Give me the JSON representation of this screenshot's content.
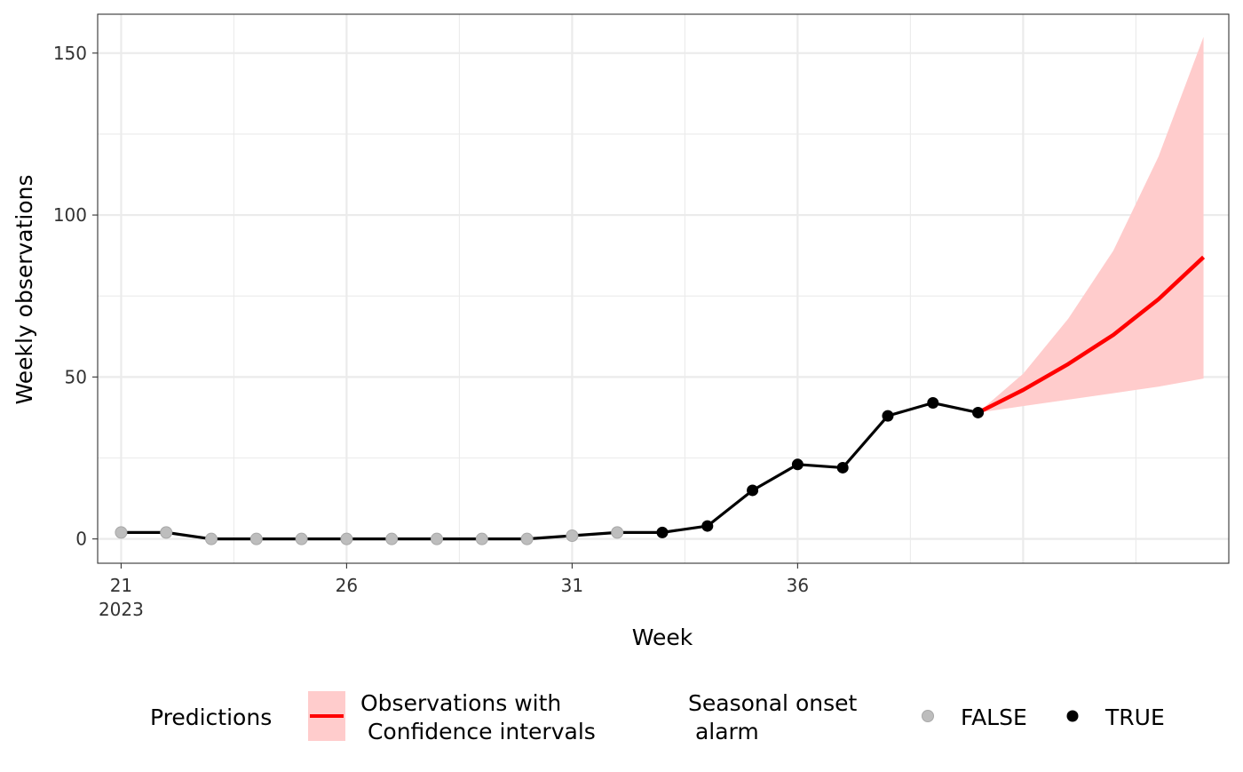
{
  "chart_data": {
    "type": "line",
    "xlabel": "Week",
    "ylabel": "Weekly observations",
    "x_ticks": [
      {
        "value": 21,
        "label": "21",
        "sublabel": "2023"
      },
      {
        "value": 26,
        "label": "26",
        "sublabel": ""
      },
      {
        "value": 31,
        "label": "31",
        "sublabel": ""
      },
      {
        "value": 36,
        "label": "36",
        "sublabel": ""
      }
    ],
    "y_ticks": [
      0,
      50,
      100,
      150
    ],
    "xlim": [
      20.48,
      45.56
    ],
    "ylim": [
      -7.5,
      162
    ],
    "observations": [
      {
        "week": 21,
        "value": 2,
        "alarm": false
      },
      {
        "week": 22,
        "value": 2,
        "alarm": false
      },
      {
        "week": 23,
        "value": 0,
        "alarm": false
      },
      {
        "week": 24,
        "value": 0,
        "alarm": false
      },
      {
        "week": 25,
        "value": 0,
        "alarm": false
      },
      {
        "week": 26,
        "value": 0,
        "alarm": false
      },
      {
        "week": 27,
        "value": 0,
        "alarm": false
      },
      {
        "week": 28,
        "value": 0,
        "alarm": false
      },
      {
        "week": 29,
        "value": 0,
        "alarm": false
      },
      {
        "week": 30,
        "value": 0,
        "alarm": false
      },
      {
        "week": 31,
        "value": 1,
        "alarm": false
      },
      {
        "week": 32,
        "value": 2,
        "alarm": false
      },
      {
        "week": 33,
        "value": 2,
        "alarm": true
      },
      {
        "week": 34,
        "value": 4,
        "alarm": true
      },
      {
        "week": 35,
        "value": 15,
        "alarm": true
      },
      {
        "week": 36,
        "value": 23,
        "alarm": true
      },
      {
        "week": 37,
        "value": 22,
        "alarm": true
      },
      {
        "week": 38,
        "value": 38,
        "alarm": true
      },
      {
        "week": 39,
        "value": 42,
        "alarm": true
      },
      {
        "week": 40,
        "value": 39,
        "alarm": true
      }
    ],
    "predictions": [
      {
        "week": 40,
        "estimate": 39,
        "lower": 39,
        "upper": 39
      },
      {
        "week": 41,
        "estimate": 46,
        "lower": 41,
        "upper": 51
      },
      {
        "week": 42,
        "estimate": 54,
        "lower": 43,
        "upper": 68
      },
      {
        "week": 43,
        "estimate": 63,
        "lower": 45,
        "upper": 89
      },
      {
        "week": 44,
        "estimate": 74,
        "lower": 47,
        "upper": 118
      },
      {
        "week": 45,
        "estimate": 87,
        "lower": 49.5,
        "upper": 155
      }
    ],
    "legend": {
      "position": "bottom",
      "predictions_title": "Predictions",
      "predictions_label_line1": "Observations with",
      "predictions_label_line2": " Confidence intervals",
      "alarm_title_line1": "Seasonal onset",
      "alarm_title_line2": " alarm",
      "alarm_false_label": "FALSE",
      "alarm_true_label": "TRUE"
    },
    "colors": {
      "line": "#000000",
      "alarm_true": "#000000",
      "alarm_false": "#bdbdbd",
      "prediction_line": "#ff0000",
      "ci_band": "#ffcccc",
      "grid": "#ebebeb"
    },
    "grid": true
  }
}
